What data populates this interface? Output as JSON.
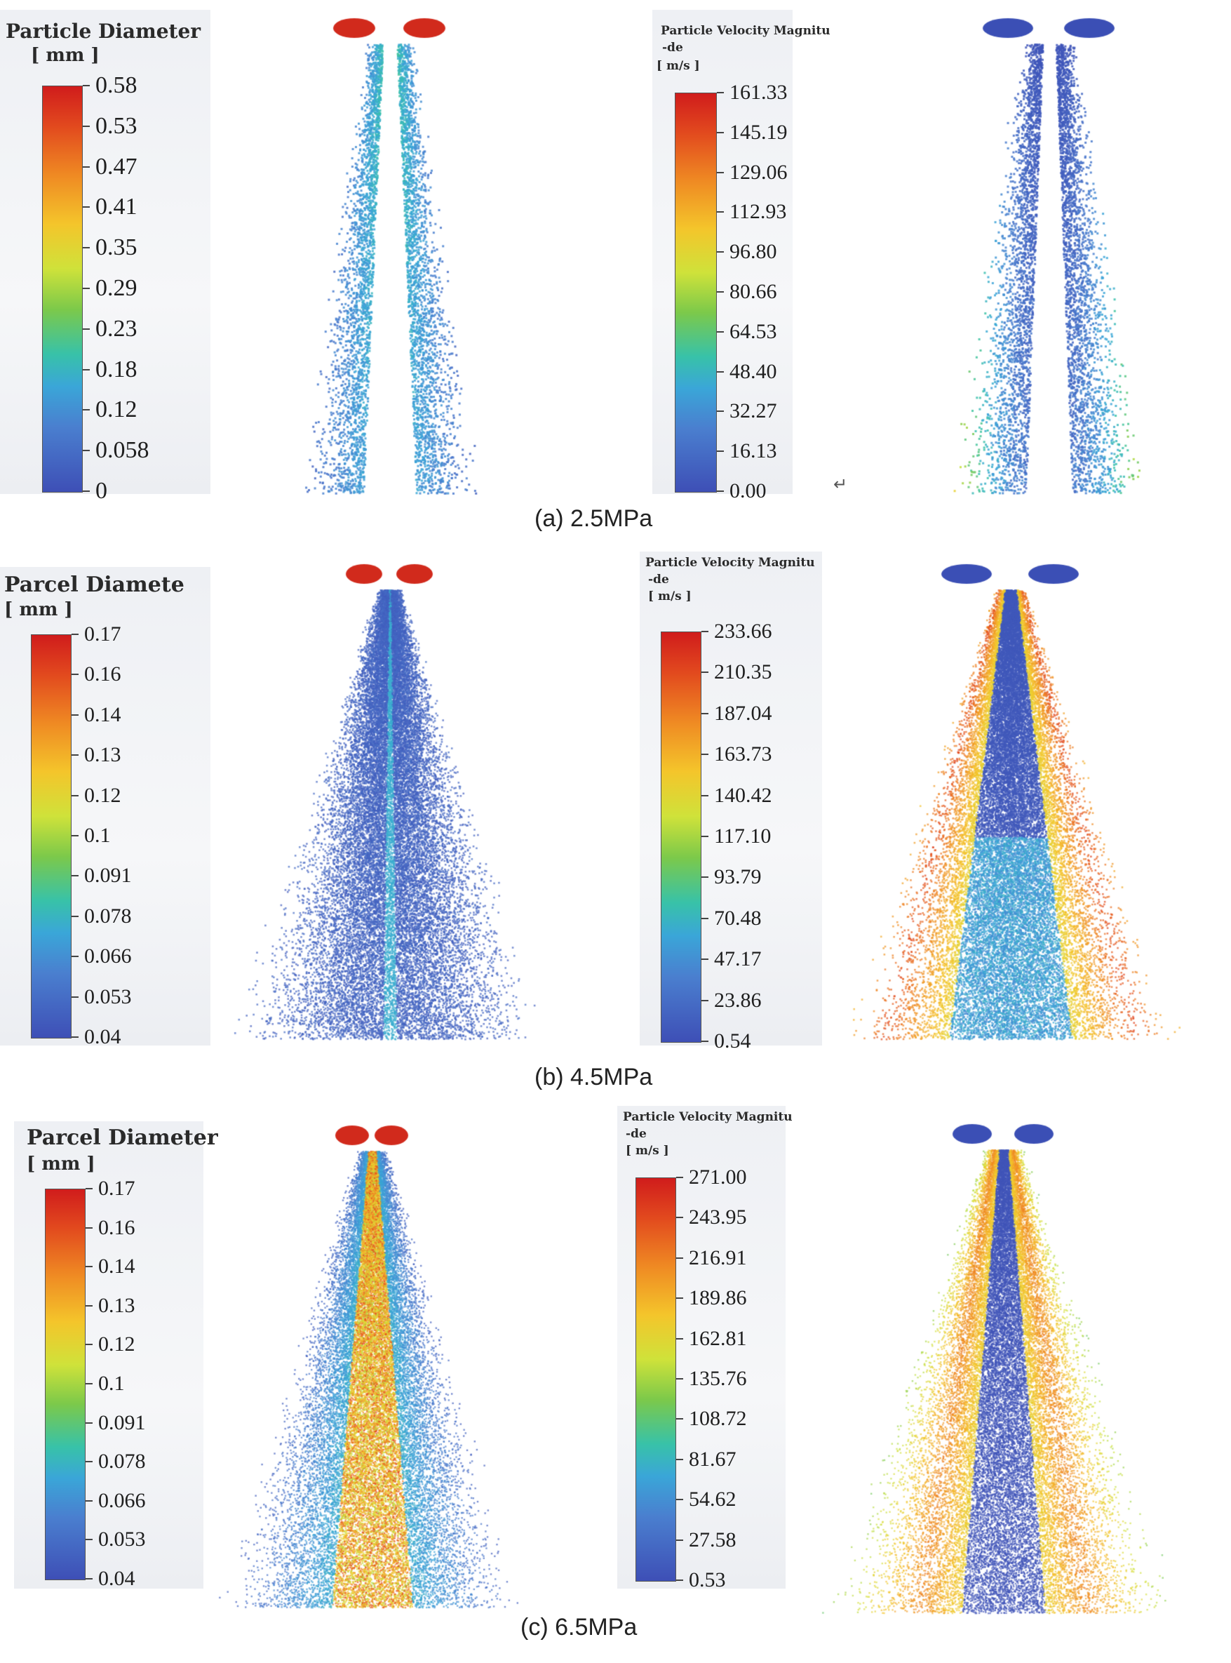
{
  "panels": [
    {
      "caption": "(a) 2.5MPa",
      "diameter_legend": {
        "title": "Particle Diameter",
        "unit": "[ mm ]",
        "ticks": [
          "0.58",
          "0.53",
          "0.47",
          "0.41",
          "0.35",
          "0.29",
          "0.23",
          "0.18",
          "0.12",
          "0.058",
          "0"
        ]
      },
      "velocity_legend": {
        "title": "Particle Velocity Magnitu",
        "title2": "-de",
        "unit": "[ m/s ]",
        "ticks": [
          "161.33",
          "145.19",
          "129.06",
          "112.93",
          "96.80",
          "80.66",
          "64.53",
          "48.40",
          "32.27",
          "16.13",
          "0.00"
        ]
      },
      "return_mark": "↵"
    },
    {
      "caption": "(b) 4.5MPa",
      "diameter_legend": {
        "title": "Parcel Diamete",
        "unit": "[ mm ]",
        "ticks": [
          "0.17",
          "0.16",
          "0.14",
          "0.13",
          "0.12",
          "0.1",
          "0.091",
          "0.078",
          "0.066",
          "0.053",
          "0.04"
        ]
      },
      "velocity_legend": {
        "title": "Particle Velocity Magnitu",
        "title2": "-de",
        "unit": "[ m/s ]",
        "ticks": [
          "233.66",
          "210.35",
          "187.04",
          "163.73",
          "140.42",
          "117.10",
          "93.79",
          "70.48",
          "47.17",
          "23.86",
          "0.54"
        ]
      }
    },
    {
      "caption": "(c) 6.5MPa",
      "diameter_legend": {
        "title": "Parcel Diameter",
        "unit": "[ mm ]",
        "ticks": [
          "0.17",
          "0.16",
          "0.14",
          "0.13",
          "0.12",
          "0.1",
          "0.091",
          "0.078",
          "0.066",
          "0.053",
          "0.04"
        ]
      },
      "velocity_legend": {
        "title": "Particle Velocity Magnitu",
        "title2": "-de",
        "unit": "[ m/s ]",
        "ticks": [
          "271.00",
          "243.95",
          "216.91",
          "189.86",
          "162.81",
          "135.76",
          "108.72",
          "81.67",
          "54.62",
          "27.58",
          "0.53"
        ]
      }
    }
  ]
}
